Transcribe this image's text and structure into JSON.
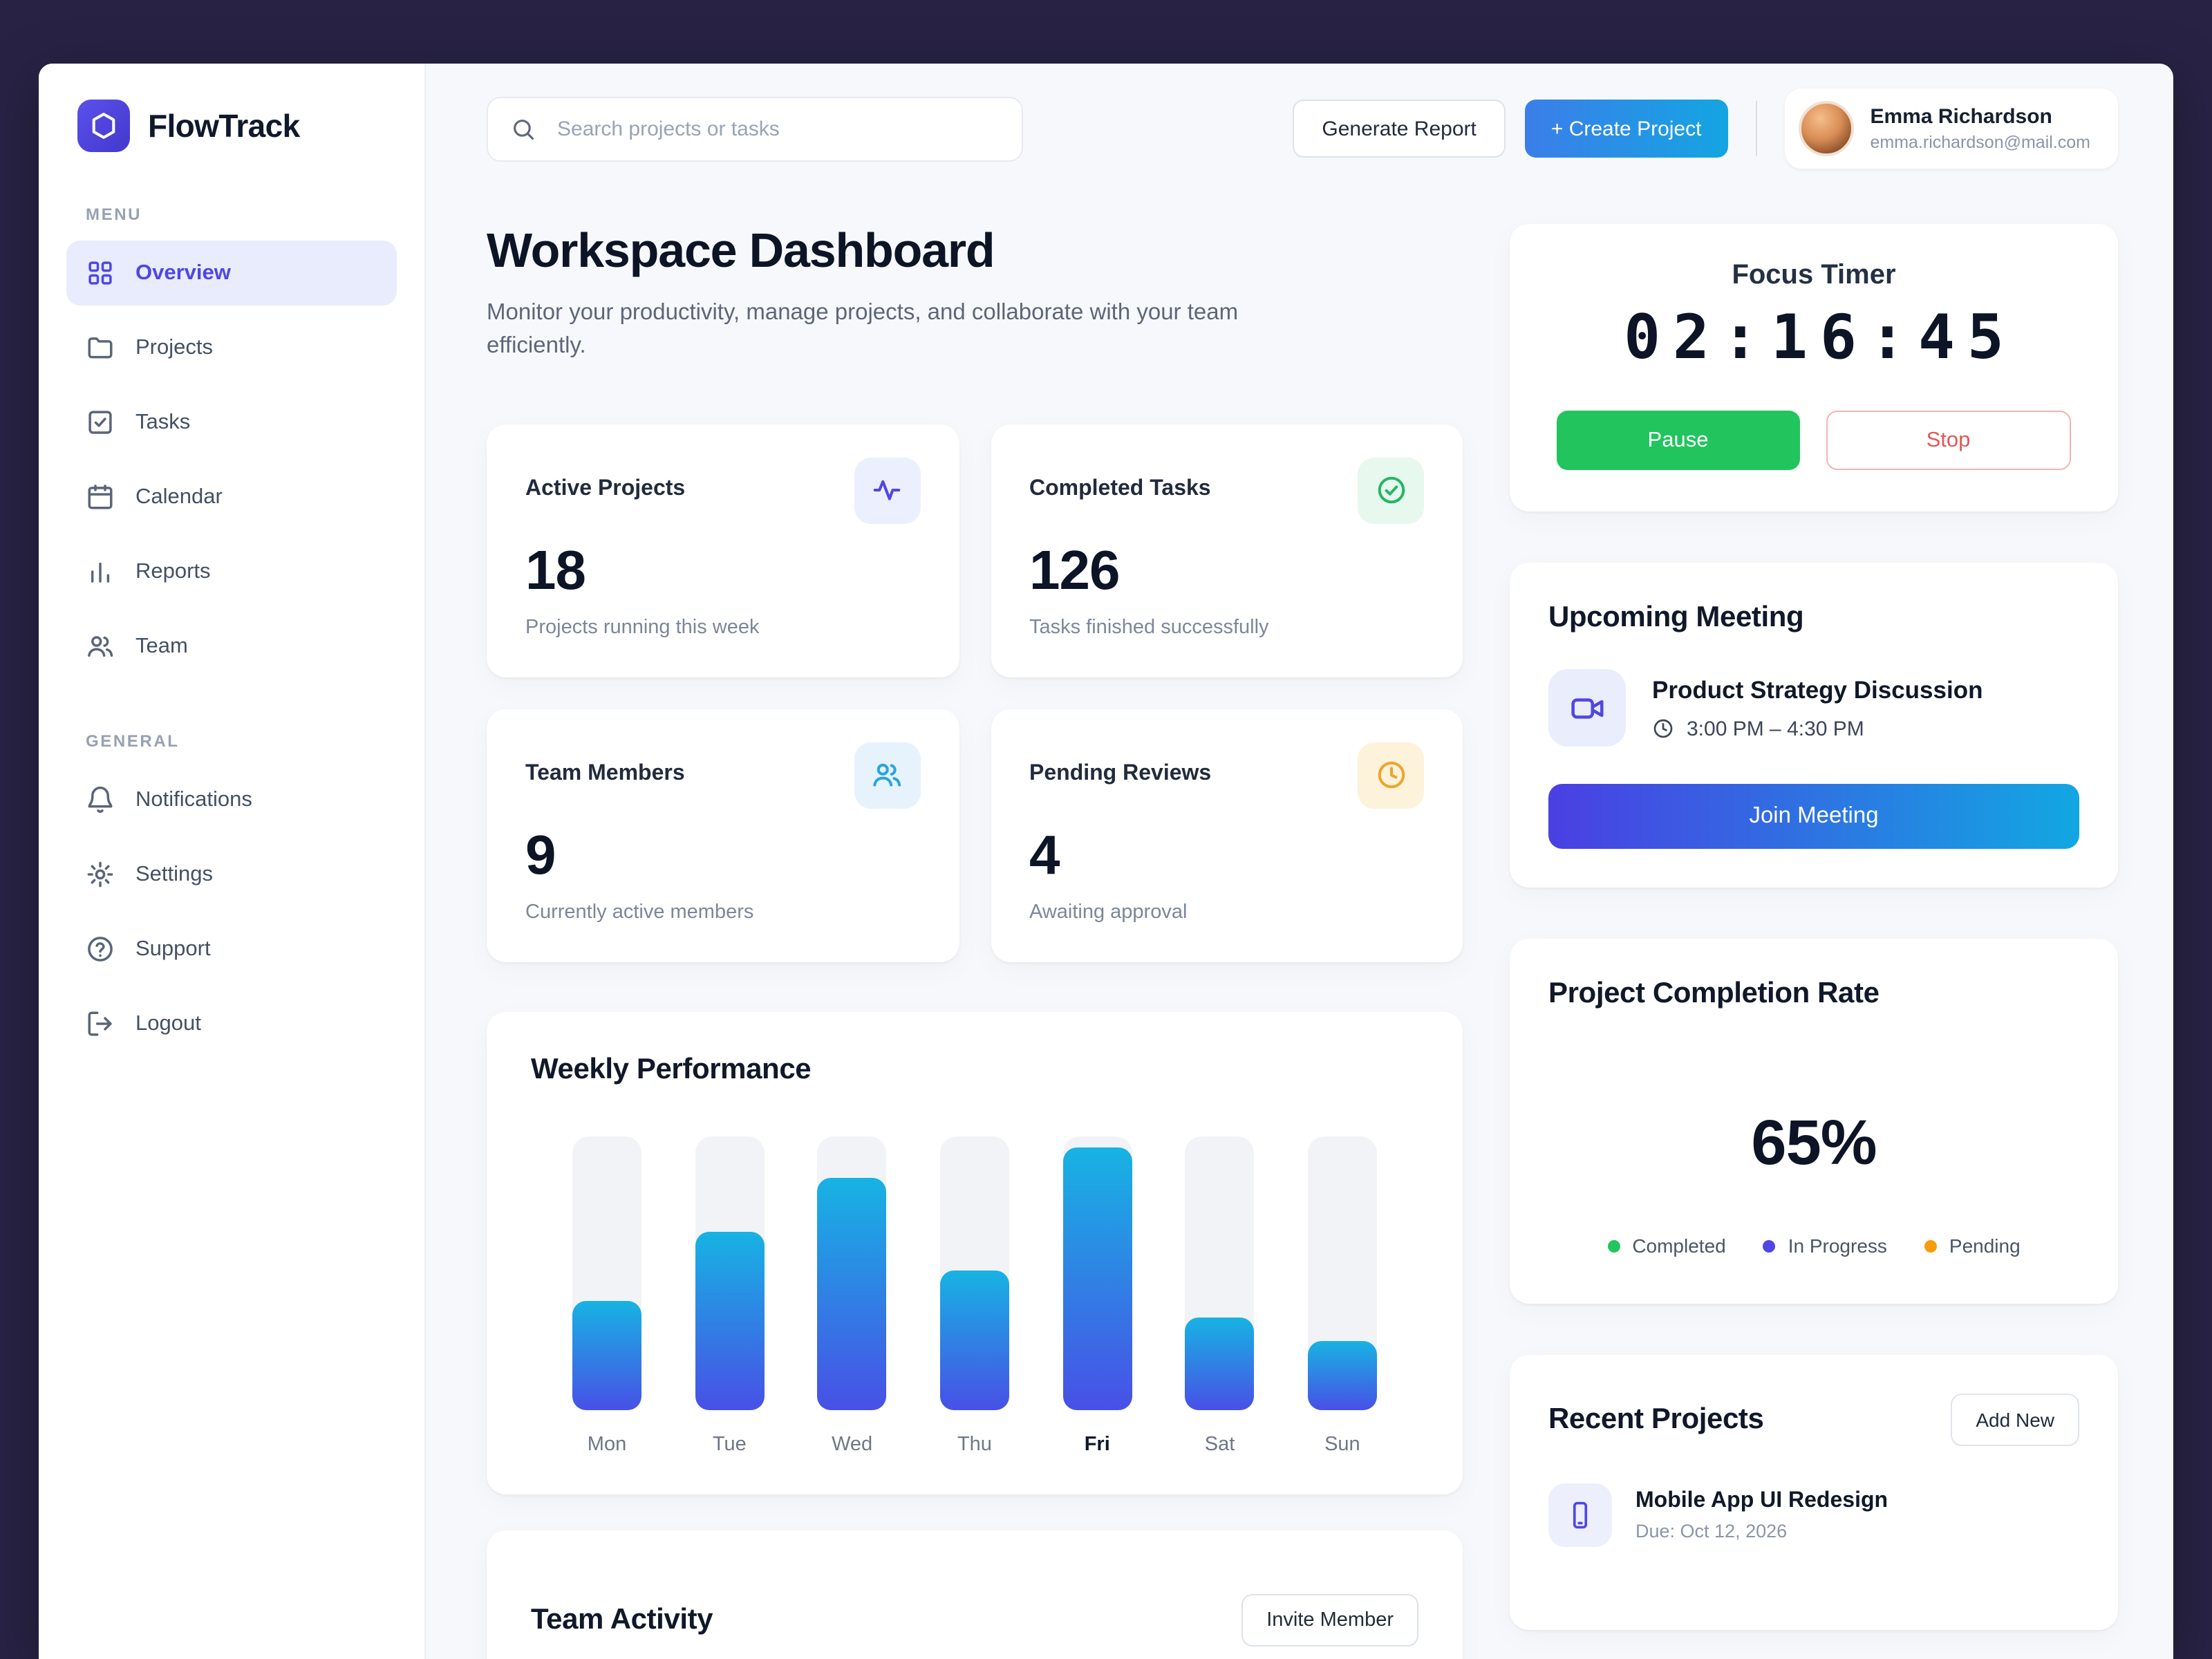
{
  "brand": {
    "name": "FlowTrack"
  },
  "sidebar": {
    "menu_label": "MENU",
    "general_label": "GENERAL",
    "menu_items": [
      {
        "label": "Overview",
        "icon": "grid-icon",
        "active": true
      },
      {
        "label": "Projects",
        "icon": "folder-icon",
        "active": false
      },
      {
        "label": "Tasks",
        "icon": "check-square-icon",
        "active": false
      },
      {
        "label": "Calendar",
        "icon": "calendar-icon",
        "active": false
      },
      {
        "label": "Reports",
        "icon": "bar-chart-icon",
        "active": false
      },
      {
        "label": "Team",
        "icon": "users-icon",
        "active": false
      }
    ],
    "general_items": [
      {
        "label": "Notifications",
        "icon": "bell-icon"
      },
      {
        "label": "Settings",
        "icon": "gear-icon"
      },
      {
        "label": "Support",
        "icon": "help-icon"
      },
      {
        "label": "Logout",
        "icon": "logout-icon"
      }
    ]
  },
  "topbar": {
    "search_placeholder": "Search projects or tasks",
    "generate_report_label": "Generate Report",
    "create_project_label": "+ Create Project",
    "user": {
      "name": "Emma Richardson",
      "email": "emma.richardson@mail.com"
    }
  },
  "page": {
    "title": "Workspace Dashboard",
    "subtitle": "Monitor your productivity, manage projects, and collaborate with your team efficiently."
  },
  "stats": [
    {
      "title": "Active Projects",
      "value": "18",
      "caption": "Projects running this week",
      "icon": "activity-icon"
    },
    {
      "title": "Completed Tasks",
      "value": "126",
      "caption": "Tasks finished successfully",
      "icon": "check-circle-icon"
    },
    {
      "title": "Team Members",
      "value": "9",
      "caption": "Currently active members",
      "icon": "users-icon"
    },
    {
      "title": "Pending Reviews",
      "value": "4",
      "caption": "Awaiting approval",
      "icon": "clock-icon"
    }
  ],
  "chart_data": {
    "type": "bar",
    "title": "Weekly Performance",
    "categories": [
      "Mon",
      "Tue",
      "Wed",
      "Thu",
      "Fri",
      "Sat",
      "Sun"
    ],
    "values": [
      40,
      65,
      85,
      51,
      96,
      34,
      25
    ],
    "highlighted_category": "Fri",
    "ylim": [
      0,
      100
    ],
    "bar_gradient": [
      "#17b3e3",
      "#4850e6"
    ],
    "grid": false,
    "legend_position": "none"
  },
  "team_activity": {
    "title": "Team Activity",
    "invite_label": "Invite Member"
  },
  "focus_timer": {
    "title": "Focus Timer",
    "time": "02:16:45",
    "pause_label": "Pause",
    "stop_label": "Stop"
  },
  "meeting": {
    "title": "Upcoming Meeting",
    "name": "Product Strategy Discussion",
    "time": "3:00 PM – 4:30 PM",
    "join_label": "Join Meeting"
  },
  "completion": {
    "title": "Project Completion Rate",
    "value": "65%",
    "legend": [
      {
        "label": "Completed",
        "color": "#22c55e"
      },
      {
        "label": "In Progress",
        "color": "#4f46e5"
      },
      {
        "label": "Pending",
        "color": "#f59e0b"
      }
    ]
  },
  "recent_projects": {
    "title": "Recent Projects",
    "add_label": "Add New",
    "items": [
      {
        "name": "Mobile App UI Redesign",
        "due": "Due: Oct 12, 2026"
      }
    ]
  },
  "colors": {
    "accent": "#4f46e5",
    "frame_background": "#282345",
    "pause_green": "#22c45e",
    "stop_red": "#e45656"
  }
}
